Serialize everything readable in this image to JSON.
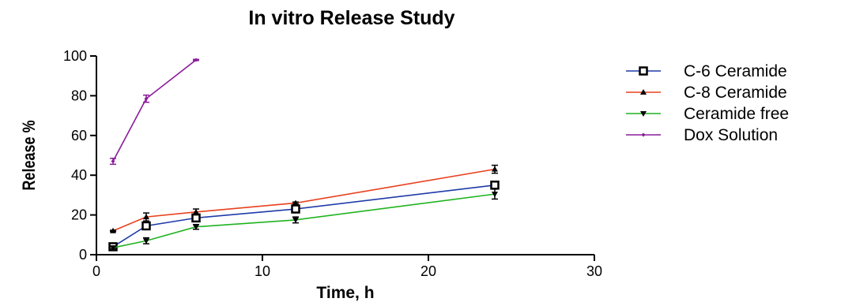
{
  "chart_data": {
    "type": "line",
    "title": "In vitro Release Study",
    "xlabel": "Time, h",
    "ylabel": "Release %",
    "xlim": [
      0,
      30
    ],
    "ylim": [
      0,
      100
    ],
    "xticks": [
      0,
      10,
      20,
      30
    ],
    "yticks": [
      0,
      20,
      40,
      60,
      80,
      100
    ],
    "grid": false,
    "legend_position": "right",
    "series": [
      {
        "name": "C-6 Ceramide",
        "color": "#1f3aa8",
        "marker": "square-open",
        "x": [
          1,
          3,
          6,
          12,
          24
        ],
        "y": [
          4,
          14.5,
          18.5,
          23,
          35
        ],
        "err": [
          0.8,
          1,
          1.5,
          1.2,
          1.5
        ]
      },
      {
        "name": "C-8 Ceramide",
        "color": "#e8401c",
        "marker": "triangle-up",
        "x": [
          1,
          3,
          6,
          12,
          24
        ],
        "y": [
          12,
          19,
          21.5,
          26,
          43
        ],
        "err": [
          0.3,
          2,
          1.5,
          0.5,
          2
        ]
      },
      {
        "name": "Ceramide free",
        "color": "#1fb31f",
        "marker": "triangle-down",
        "x": [
          1,
          3,
          6,
          12,
          24
        ],
        "y": [
          3.5,
          7,
          14,
          17.5,
          30.5
        ],
        "err": [
          0.5,
          1.5,
          1.2,
          1.5,
          2.5
        ]
      },
      {
        "name": "Dox Solution",
        "color": "#8b1a9a",
        "marker": "diamond",
        "x": [
          1,
          3,
          6
        ],
        "y": [
          47,
          78.5,
          98
        ],
        "err": [
          1.5,
          1.8,
          0.3
        ]
      }
    ]
  }
}
